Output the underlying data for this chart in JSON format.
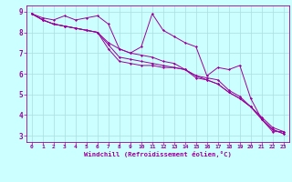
{
  "x_hours": [
    0,
    1,
    2,
    3,
    4,
    5,
    6,
    7,
    8,
    9,
    10,
    11,
    12,
    13,
    14,
    15,
    16,
    17,
    18,
    19,
    20,
    21,
    22,
    23
  ],
  "line1": [
    8.9,
    8.7,
    8.6,
    8.8,
    8.6,
    8.7,
    8.8,
    8.4,
    7.2,
    7.0,
    7.3,
    8.9,
    8.1,
    7.8,
    7.5,
    7.3,
    5.9,
    6.3,
    6.2,
    6.4,
    4.8,
    3.8,
    3.2,
    3.2
  ],
  "line2": [
    8.9,
    8.6,
    8.4,
    8.3,
    8.2,
    8.1,
    8.0,
    7.2,
    6.6,
    6.5,
    6.4,
    6.4,
    6.3,
    6.3,
    6.2,
    5.8,
    5.7,
    5.5,
    5.1,
    4.8,
    4.4,
    3.8,
    3.3,
    3.1
  ],
  "line3": [
    8.9,
    8.6,
    8.4,
    8.3,
    8.2,
    8.1,
    8.0,
    7.4,
    6.8,
    6.7,
    6.6,
    6.5,
    6.4,
    6.3,
    6.2,
    5.9,
    5.7,
    5.5,
    5.1,
    4.8,
    4.4,
    3.8,
    3.3,
    3.1
  ],
  "line4": [
    8.9,
    8.6,
    8.4,
    8.3,
    8.2,
    8.1,
    8.0,
    7.5,
    7.2,
    7.0,
    6.9,
    6.8,
    6.6,
    6.5,
    6.2,
    5.9,
    5.8,
    5.7,
    5.2,
    4.9,
    4.4,
    3.9,
    3.4,
    3.2
  ],
  "line_color": "#9b009b",
  "bg_color": "#ccffff",
  "grid_color": "#aadddd",
  "axis_color": "#9b009b",
  "tick_color": "#9b009b",
  "xlabel": "Windchill (Refroidissement éolien,°C)",
  "ylim": [
    2.7,
    9.3
  ],
  "xlim": [
    -0.5,
    23.5
  ],
  "yticks": [
    3,
    4,
    5,
    6,
    7,
    8,
    9
  ],
  "xticks": [
    0,
    1,
    2,
    3,
    4,
    5,
    6,
    7,
    8,
    9,
    10,
    11,
    12,
    13,
    14,
    15,
    16,
    17,
    18,
    19,
    20,
    21,
    22,
    23
  ]
}
